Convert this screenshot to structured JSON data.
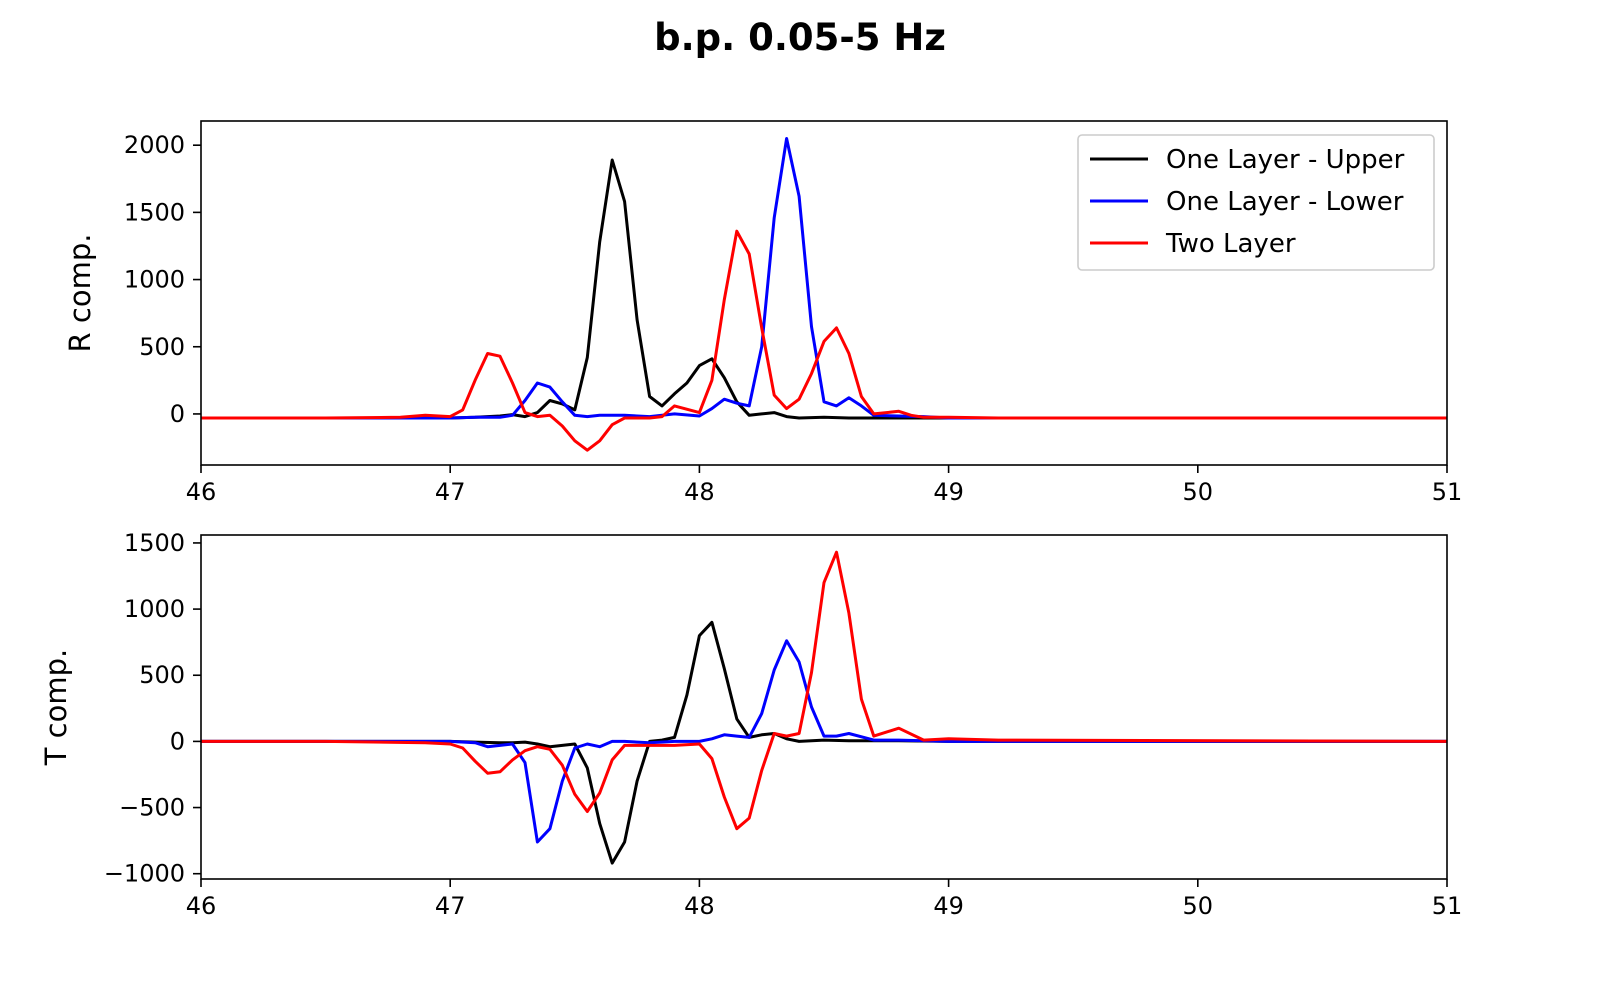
{
  "title": "b.p. 0.05-5 Hz",
  "colors": {
    "One Layer - Upper": "#000000",
    "One Layer - Lower": "#0000ff",
    "Two Layer": "#ff0000"
  },
  "chart_data": [
    {
      "type": "line",
      "panel": "top",
      "title": "",
      "xlabel": "",
      "ylabel": "R comp.",
      "xlim": [
        46,
        51
      ],
      "ylim": [
        -380,
        2180
      ],
      "xticks": [
        46,
        47,
        48,
        49,
        50,
        51
      ],
      "yticks": [
        0,
        500,
        1000,
        1500,
        2000
      ],
      "grid": false,
      "legend": {
        "position": "top-right",
        "entries": [
          "One Layer - Upper",
          "One Layer - Lower",
          "Two Layer"
        ]
      },
      "series": [
        {
          "name": "One Layer - Upper",
          "color": "#000000",
          "x": [
            46,
            46.5,
            47,
            47.1,
            47.2,
            47.25,
            47.3,
            47.35,
            47.4,
            47.45,
            47.5,
            47.55,
            47.6,
            47.65,
            47.7,
            47.75,
            47.8,
            47.85,
            47.9,
            47.95,
            48.0,
            48.05,
            48.1,
            48.15,
            48.2,
            48.25,
            48.3,
            48.35,
            48.4,
            48.5,
            48.6,
            48.8,
            49,
            51
          ],
          "y": [
            -30,
            -30,
            -30,
            -25,
            -15,
            -5,
            -20,
            10,
            100,
            75,
            30,
            420,
            1280,
            1890,
            1580,
            700,
            130,
            60,
            150,
            230,
            360,
            410,
            270,
            90,
            -10,
            0,
            10,
            -20,
            -30,
            -25,
            -30,
            -30,
            -30,
            -30
          ]
        },
        {
          "name": "One Layer - Lower",
          "color": "#0000ff",
          "x": [
            46,
            46.5,
            47,
            47.1,
            47.2,
            47.25,
            47.3,
            47.35,
            47.4,
            47.45,
            47.5,
            47.55,
            47.6,
            47.7,
            47.8,
            47.9,
            48.0,
            48.05,
            48.1,
            48.15,
            48.2,
            48.25,
            48.3,
            48.35,
            48.4,
            48.45,
            48.5,
            48.55,
            48.6,
            48.65,
            48.7,
            48.8,
            48.9,
            49,
            51
          ],
          "y": [
            -30,
            -30,
            -30,
            -25,
            -25,
            -10,
            100,
            230,
            200,
            90,
            -10,
            -20,
            -10,
            -10,
            -20,
            0,
            -15,
            40,
            110,
            80,
            60,
            500,
            1460,
            2050,
            1620,
            650,
            90,
            60,
            120,
            60,
            -10,
            -15,
            -20,
            -30,
            -30
          ]
        },
        {
          "name": "Two Layer",
          "color": "#ff0000",
          "x": [
            46,
            46.5,
            46.8,
            46.9,
            47.0,
            47.05,
            47.1,
            47.15,
            47.2,
            47.25,
            47.3,
            47.35,
            47.4,
            47.45,
            47.5,
            47.55,
            47.6,
            47.65,
            47.7,
            47.8,
            47.85,
            47.9,
            48.0,
            48.05,
            48.1,
            48.15,
            48.2,
            48.25,
            48.3,
            48.35,
            48.4,
            48.45,
            48.5,
            48.55,
            48.6,
            48.65,
            48.7,
            48.8,
            48.85,
            48.9,
            49.0,
            49.2,
            51
          ],
          "y": [
            -30,
            -30,
            -25,
            -10,
            -20,
            30,
            250,
            450,
            430,
            230,
            10,
            -20,
            -10,
            -90,
            -200,
            -270,
            -200,
            -80,
            -30,
            -30,
            -20,
            60,
            10,
            250,
            850,
            1360,
            1190,
            640,
            140,
            40,
            110,
            300,
            540,
            640,
            450,
            130,
            0,
            20,
            -10,
            -25,
            -25,
            -30,
            -30
          ]
        }
      ]
    },
    {
      "type": "line",
      "panel": "bottom",
      "title": "",
      "xlabel": "",
      "ylabel": "T comp.",
      "xlim": [
        46,
        51
      ],
      "ylim": [
        -1040,
        1560
      ],
      "xticks": [
        46,
        47,
        48,
        49,
        50,
        51
      ],
      "yticks": [
        -1000,
        -500,
        0,
        500,
        1000,
        1500
      ],
      "grid": false,
      "series": [
        {
          "name": "One Layer - Upper",
          "color": "#000000",
          "x": [
            46,
            46.5,
            47.0,
            47.1,
            47.2,
            47.25,
            47.3,
            47.35,
            47.4,
            47.45,
            47.5,
            47.55,
            47.6,
            47.65,
            47.7,
            47.75,
            47.8,
            47.85,
            47.9,
            47.95,
            48.0,
            48.05,
            48.1,
            48.15,
            48.2,
            48.25,
            48.3,
            48.35,
            48.4,
            48.5,
            48.6,
            48.8,
            49,
            51
          ],
          "y": [
            0,
            0,
            0,
            -5,
            -10,
            -10,
            -5,
            -20,
            -40,
            -30,
            -20,
            -200,
            -620,
            -920,
            -760,
            -300,
            0,
            10,
            30,
            350,
            800,
            900,
            550,
            170,
            30,
            50,
            60,
            20,
            0,
            10,
            5,
            5,
            0,
            0
          ]
        },
        {
          "name": "One Layer - Lower",
          "color": "#0000ff",
          "x": [
            46,
            46.5,
            47.0,
            47.1,
            47.15,
            47.2,
            47.25,
            47.3,
            47.35,
            47.4,
            47.45,
            47.5,
            47.55,
            47.6,
            47.65,
            47.7,
            47.8,
            47.9,
            48.0,
            48.05,
            48.1,
            48.15,
            48.2,
            48.25,
            48.3,
            48.35,
            48.4,
            48.45,
            48.5,
            48.55,
            48.6,
            48.7,
            48.8,
            49,
            51
          ],
          "y": [
            0,
            0,
            0,
            -10,
            -40,
            -30,
            -20,
            -160,
            -760,
            -660,
            -300,
            -50,
            -20,
            -40,
            0,
            0,
            -10,
            0,
            0,
            20,
            50,
            40,
            30,
            210,
            540,
            760,
            600,
            260,
            40,
            40,
            60,
            10,
            10,
            0,
            0
          ]
        },
        {
          "name": "Two Layer",
          "color": "#ff0000",
          "x": [
            46,
            46.5,
            46.9,
            47.0,
            47.05,
            47.1,
            47.15,
            47.2,
            47.25,
            47.3,
            47.35,
            47.4,
            47.45,
            47.5,
            47.55,
            47.6,
            47.65,
            47.7,
            47.8,
            47.9,
            48.0,
            48.05,
            48.1,
            48.15,
            48.2,
            48.25,
            48.3,
            48.35,
            48.4,
            48.45,
            48.5,
            48.55,
            48.6,
            48.65,
            48.7,
            48.8,
            48.9,
            49.0,
            49.2,
            51
          ],
          "y": [
            0,
            0,
            -10,
            -20,
            -50,
            -150,
            -240,
            -230,
            -140,
            -70,
            -40,
            -60,
            -180,
            -400,
            -530,
            -390,
            -140,
            -30,
            -30,
            -30,
            -20,
            -130,
            -420,
            -660,
            -580,
            -220,
            60,
            40,
            60,
            520,
            1200,
            1430,
            970,
            320,
            40,
            100,
            10,
            20,
            10,
            0
          ]
        }
      ]
    }
  ]
}
